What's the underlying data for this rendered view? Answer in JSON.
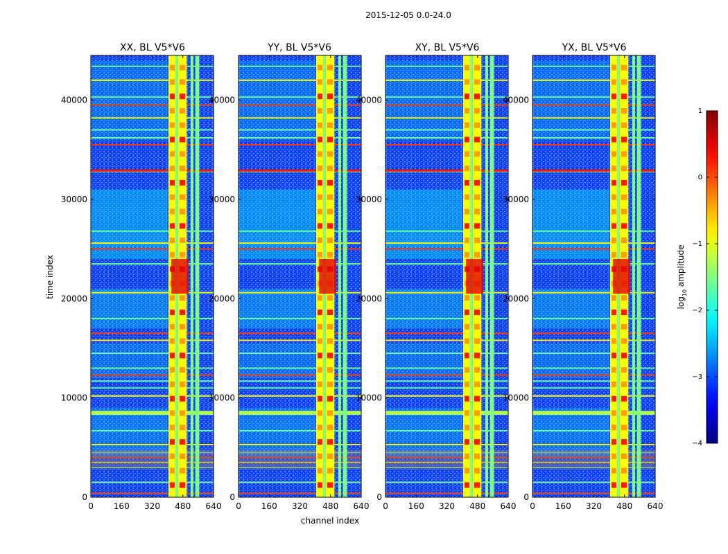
{
  "chart_data": {
    "type": "heatmap",
    "title": "2015-12-05 0.0-24.0",
    "xlabel": "channel index",
    "ylabel": "time index",
    "xlim": [
      0,
      640
    ],
    "ylim": [
      0,
      44500
    ],
    "xticks": [
      0,
      160,
      320,
      480,
      640
    ],
    "yticks": [
      0,
      10000,
      20000,
      30000,
      40000
    ],
    "panels": [
      {
        "name": "XX",
        "title": "XX, BL V5*V6"
      },
      {
        "name": "YY",
        "title": "YY, BL V5*V6"
      },
      {
        "name": "XY",
        "title": "XY, BL V5*V6"
      },
      {
        "name": "YX",
        "title": "YX, BL V5*V6"
      }
    ],
    "colorbar": {
      "label_prefix": "log",
      "label_sub": "10",
      "label_suffix": " amplitude",
      "range": [
        -4,
        1
      ],
      "ticks": [
        1,
        0,
        -1,
        -2,
        -3,
        -4
      ],
      "tick_labels": [
        "1",
        "0",
        "−1",
        "−2",
        "−3",
        "−4"
      ],
      "colormap": "jet"
    },
    "rfi_channel_bands": [
      [
        405,
        445
      ],
      [
        440,
        455
      ],
      [
        455,
        500
      ],
      [
        520,
        535
      ],
      [
        545,
        565
      ]
    ],
    "rfi_time_lines": [
      400,
      1500,
      3000,
      3500,
      4000,
      4500,
      5300,
      6700,
      8500,
      10200,
      11000,
      11700,
      12300,
      13000,
      14500,
      15800,
      16500,
      18000,
      20600,
      23500,
      25000,
      25600,
      26800,
      32800,
      35500,
      36200,
      37000,
      38200,
      39500,
      40300,
      42000,
      43400
    ]
  }
}
